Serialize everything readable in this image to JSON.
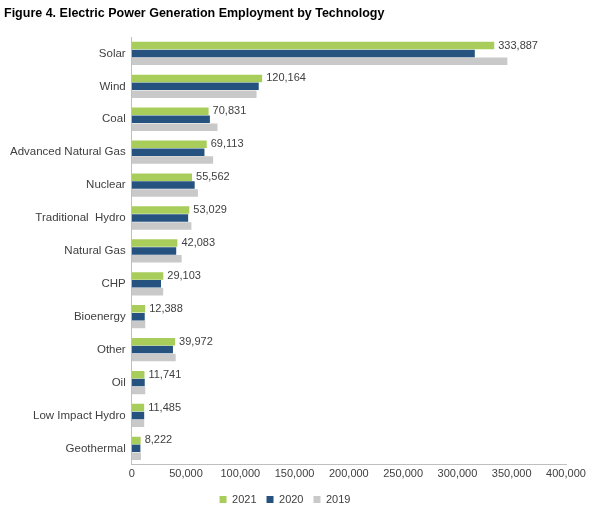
{
  "chart_data": {
    "type": "bar",
    "orientation": "horizontal",
    "title": "Figure 4. Electric Power Generation Employment by Technology",
    "categories": [
      "Solar",
      "Wind",
      "Coal",
      "Advanced Natural Gas",
      "Nuclear",
      "Traditional  Hydro",
      "Natural Gas",
      "CHP",
      "Bioenergy",
      "Other",
      "Oil",
      "Low Impact Hydro",
      "Geothermal"
    ],
    "series": [
      {
        "name": "2021",
        "color": "#a9cd5b",
        "values": [
          333887,
          120164,
          70831,
          69113,
          55562,
          53029,
          42083,
          29103,
          12388,
          39972,
          11741,
          11485,
          8222
        ],
        "value_labels": [
          "333,887",
          "120,164",
          "70,831",
          "69,113",
          "55,562",
          "53,029",
          "42,083",
          "29,103",
          "12,388",
          "39,972",
          "11,741",
          "11,485",
          "8,222"
        ]
      },
      {
        "name": "2020",
        "color": "#25527f",
        "values": [
          316000,
          117000,
          72000,
          67000,
          58000,
          52000,
          41000,
          27000,
          12000,
          38000,
          12000,
          11500,
          8000
        ]
      },
      {
        "name": "2019",
        "color": "#c9c9c9",
        "values": [
          346000,
          115000,
          79000,
          75000,
          61000,
          55000,
          46000,
          29000,
          12500,
          40500,
          12500,
          11500,
          8500
        ]
      }
    ],
    "xlim": [
      0,
      400000
    ],
    "xticks": [
      0,
      {
        "value": 50000,
        "label": "50,000"
      },
      {
        "value": 100000,
        "label": "100,000"
      },
      {
        "value": 150000,
        "label": "150,000"
      },
      {
        "value": 200000,
        "label": "200,000"
      },
      {
        "value": 250000,
        "label": "250,000"
      },
      {
        "value": 300000,
        "label": "300,000"
      },
      {
        "value": 350000,
        "label": "350,000"
      },
      {
        "value": 400000,
        "label": "400,000"
      }
    ],
    "grid": false,
    "legend": "bottom",
    "data_labels": true
  }
}
